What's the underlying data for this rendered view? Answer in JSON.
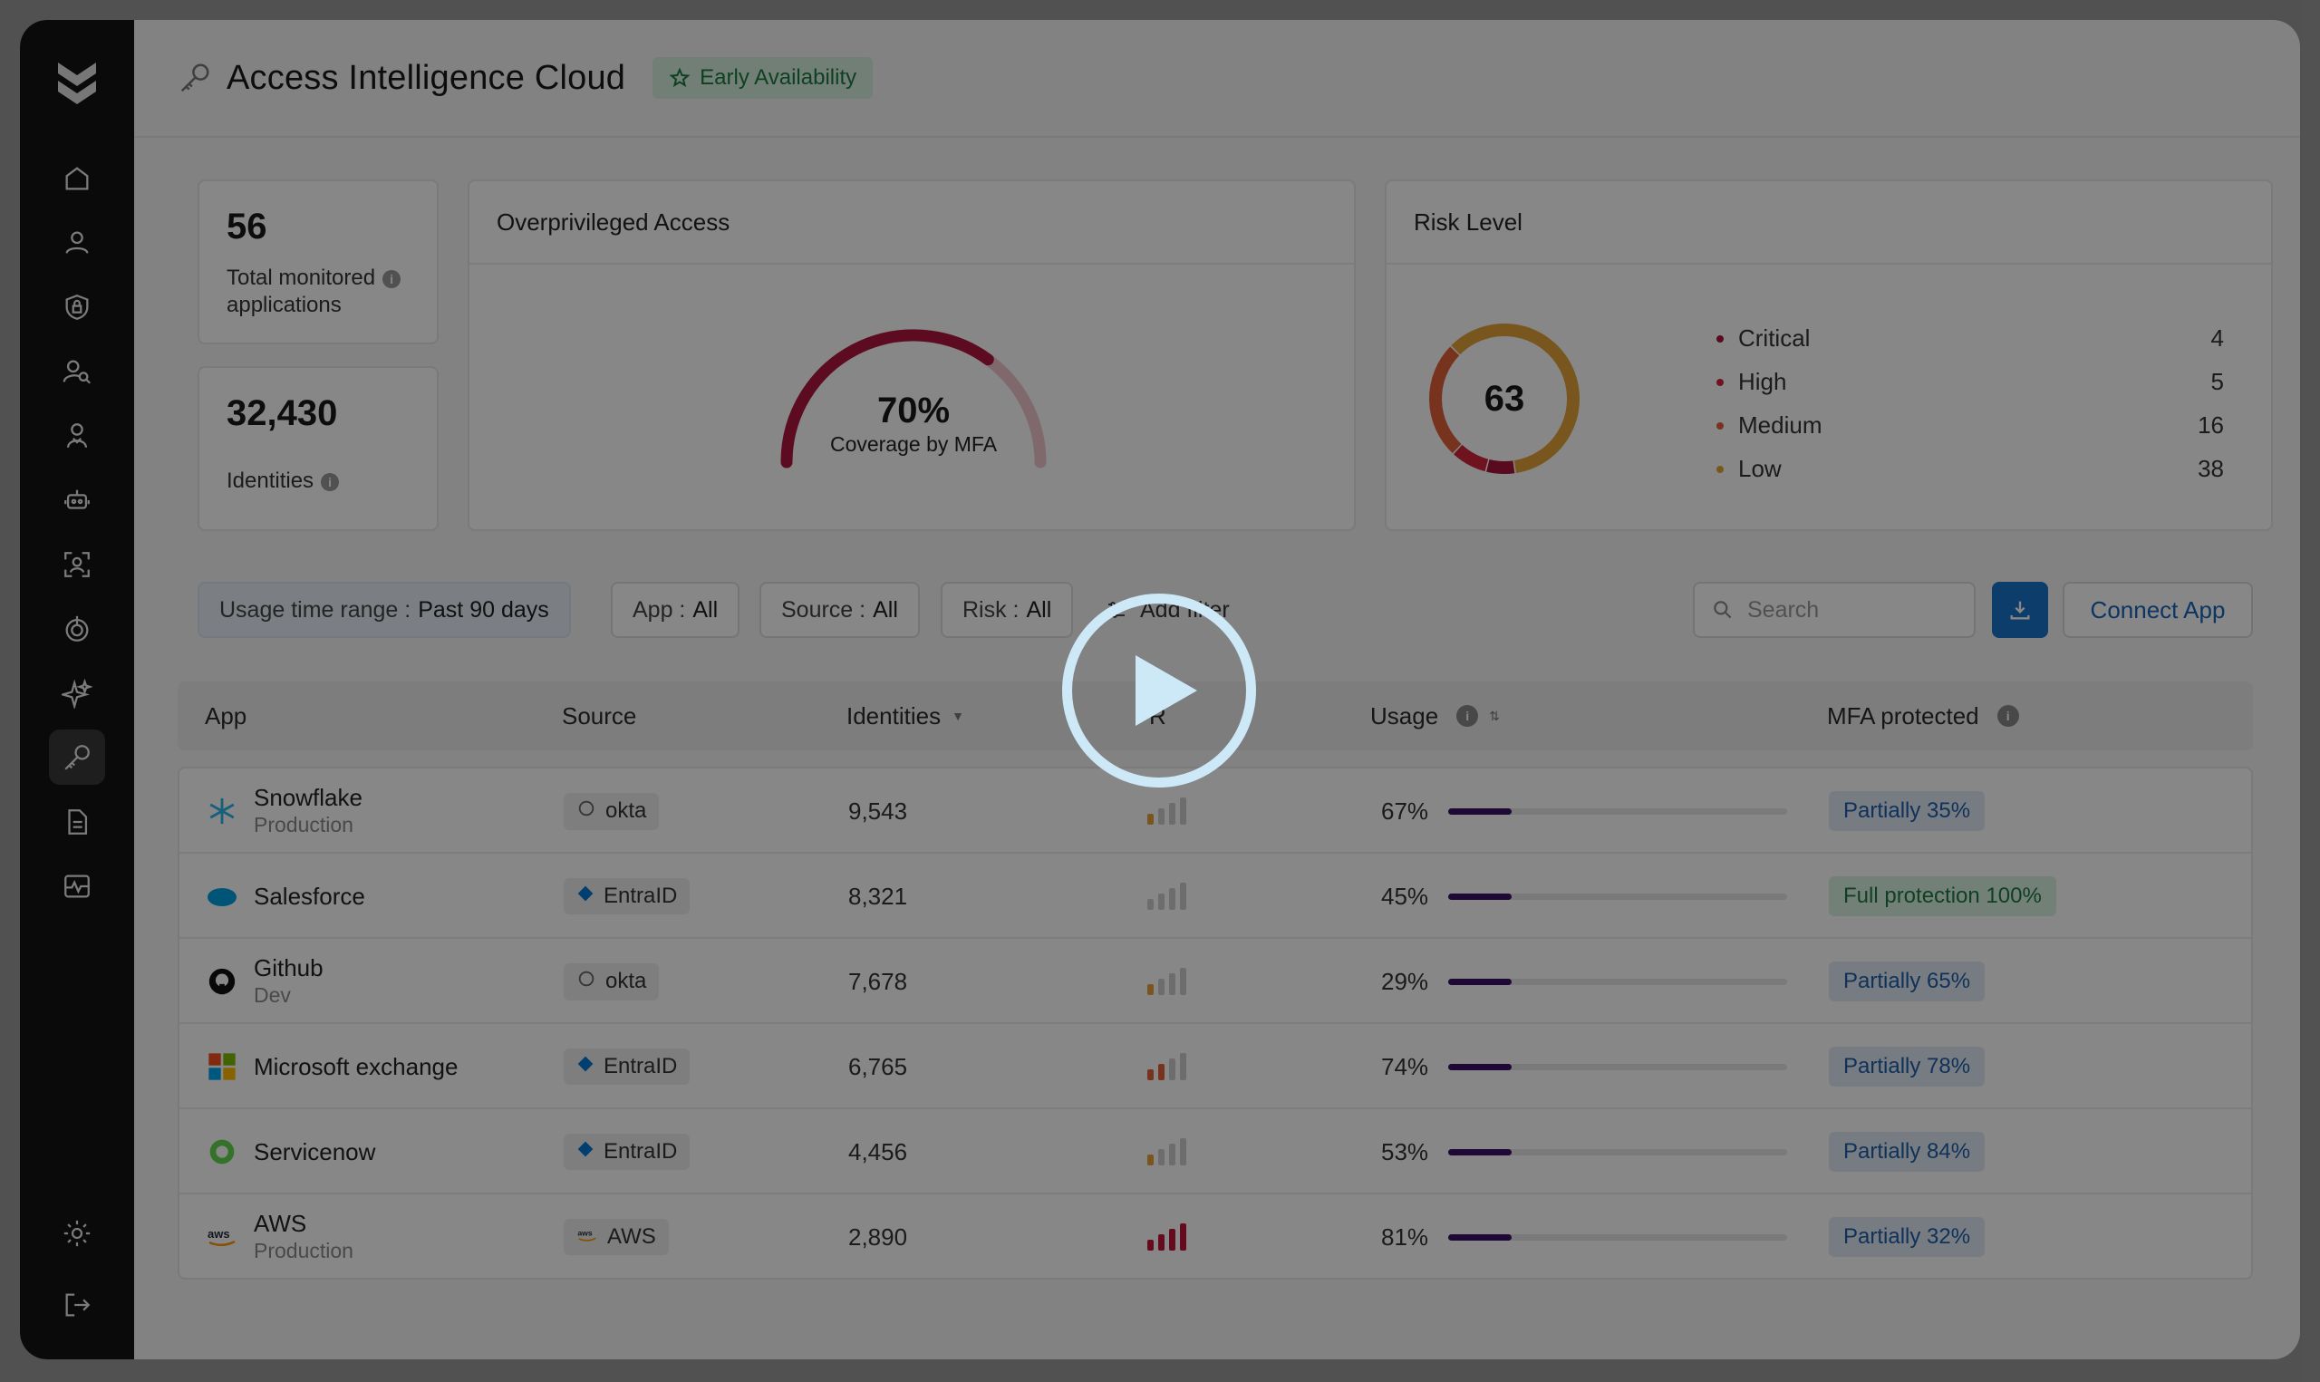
{
  "header": {
    "title": "Access Intelligence Cloud",
    "badge": "Early Availability"
  },
  "stats": {
    "apps": {
      "value": "56",
      "label_line1": "Total monitored",
      "label_line2": "applications"
    },
    "identities": {
      "value": "32,430",
      "label": "Identities"
    }
  },
  "overprivileged": {
    "title": "Overprivileged Access",
    "percent": "70%",
    "caption": "Coverage by MFA",
    "fraction": 0.7
  },
  "risk": {
    "title": "Risk Level",
    "total": "63",
    "levels": [
      {
        "label": "Critical",
        "value": "4",
        "color": "#a8143a"
      },
      {
        "label": "High",
        "value": "5",
        "color": "#d2273a"
      },
      {
        "label": "Medium",
        "value": "16",
        "color": "#e0603a"
      },
      {
        "label": "Low",
        "value": "38",
        "color": "#e6a23c"
      }
    ]
  },
  "filters": {
    "usage_label": "Usage time range :",
    "usage_value": "Past 90 days",
    "app_label": "App :",
    "app_value": "All",
    "source_label": "Source :",
    "source_value": "All",
    "risk_label": "Risk :",
    "risk_value": "All",
    "add_filter": "Add filter",
    "search_placeholder": "Search",
    "connect": "Connect App"
  },
  "table": {
    "headers": {
      "app": "App",
      "source": "Source",
      "identities": "Identities",
      "risk": "R",
      "usage": "Usage",
      "mfa": "MFA protected"
    },
    "rows": [
      {
        "name": "Snowflake",
        "env": "Production",
        "source": "okta",
        "identities": "9,543",
        "risk": 1,
        "usage": "67%",
        "usage_value": 0.67,
        "mfa": "Partially 35%",
        "mfa_type": "partial"
      },
      {
        "name": "Salesforce",
        "env": "",
        "source": "EntraID",
        "identities": "8,321",
        "risk": 0,
        "usage": "45%",
        "usage_value": 0.45,
        "mfa": "Full protection 100%",
        "mfa_type": "full"
      },
      {
        "name": "Github",
        "env": "Dev",
        "source": "okta",
        "identities": "7,678",
        "risk": 1,
        "usage": "29%",
        "usage_value": 0.29,
        "mfa": "Partially 65%",
        "mfa_type": "partial"
      },
      {
        "name": "Microsoft exchange",
        "env": "",
        "source": "EntraID",
        "identities": "6,765",
        "risk": 2,
        "usage": "74%",
        "usage_value": 0.74,
        "mfa": "Partially 78%",
        "mfa_type": "partial"
      },
      {
        "name": "Servicenow",
        "env": "",
        "source": "EntraID",
        "identities": "4,456",
        "risk": 1,
        "usage": "53%",
        "usage_value": 0.53,
        "mfa": "Partially 84%",
        "mfa_type": "partial"
      },
      {
        "name": "AWS",
        "env": "Production",
        "source": "AWS",
        "identities": "2,890",
        "risk": 4,
        "usage": "81%",
        "usage_value": 0.81,
        "mfa": "Partially 32%",
        "mfa_type": "partial"
      }
    ]
  }
}
